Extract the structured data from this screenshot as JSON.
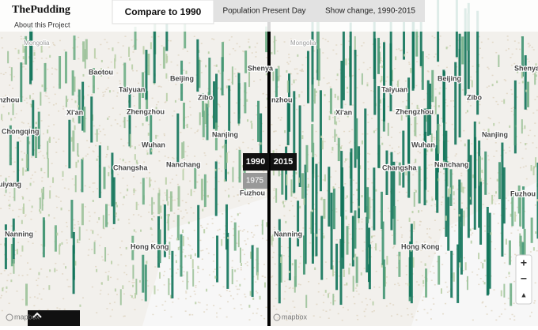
{
  "header": {
    "logo": "ThePudding",
    "about": "About this Project"
  },
  "tabs": [
    "Compare to 1990",
    "Population Present Day",
    "Show change, 1990-2015"
  ],
  "maps": [
    {
      "year": "1990",
      "slider_year": "1975",
      "attribution": "mapbox",
      "labels": [
        "Mongolia",
        "Baotou",
        "Beijing",
        "Taiyuan",
        "Zibo",
        "nzhou",
        "Xi'an",
        "Zhengzhou",
        "Chongqing",
        "Nanjing",
        "Wuhan",
        "Nanchang",
        "Changsha",
        "uiyang",
        "Fuzhou",
        "Nanning",
        "Hong Kong",
        "Shenya"
      ]
    },
    {
      "year": "2015",
      "attribution": "mapbox",
      "labels": [
        "Mongolia",
        "Shenya",
        "Beijing",
        "Taiyuan",
        "Zibo",
        "nzhou",
        "Xi'an",
        "Zhengzhou",
        "Nanjing",
        "Wuhan",
        "Nanchang",
        "Changsha",
        "Fuzhou",
        "Nanning",
        "Hong Kong"
      ]
    }
  ],
  "zoom": [
    "+",
    "−",
    "▲"
  ]
}
